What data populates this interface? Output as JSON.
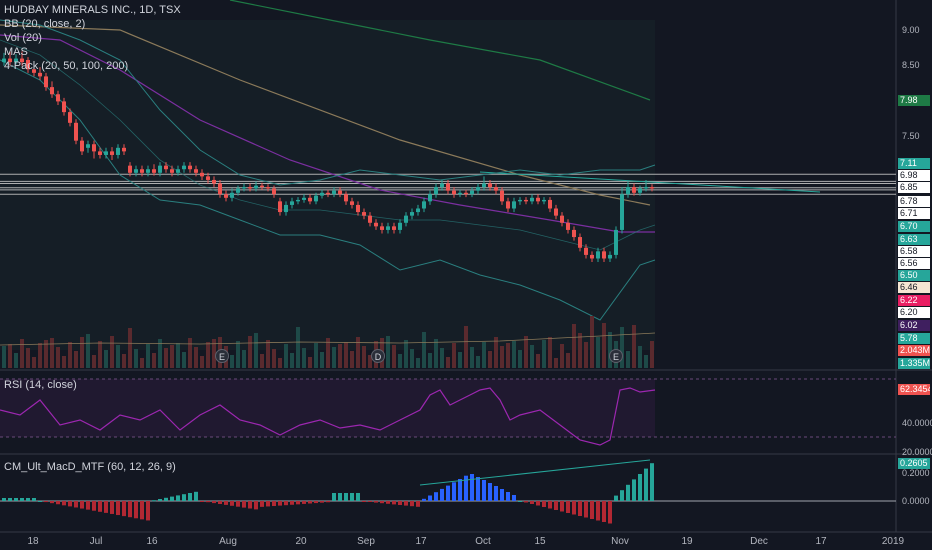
{
  "main": {
    "title": "HUDBAY MINERALS INC., 1D, TSX",
    "indicators": [
      "BB (20, close, 2)",
      "Vol (20)",
      "MAS",
      "4-Pack (20, 50, 100, 200)"
    ],
    "price_axis": [
      "9.00",
      "8.50",
      "7.50"
    ],
    "price_tags": [
      {
        "label": "7.98",
        "bg": "#1e7a45"
      },
      {
        "label": "7.11",
        "bg": "#26a69a"
      },
      {
        "label": "6.98",
        "bg": "#ffffff"
      },
      {
        "label": "6.85",
        "bg": "#ffffff"
      },
      {
        "label": "6.78",
        "bg": "#ffffff"
      },
      {
        "label": "6.71",
        "bg": "#ffffff"
      },
      {
        "label": "6.70",
        "bg": "#26a69a"
      },
      {
        "label": "6.63",
        "bg": "#26a69a"
      },
      {
        "label": "6.58",
        "bg": "#ffffff"
      },
      {
        "label": "6.56",
        "bg": "#ffffff"
      },
      {
        "label": "6.50",
        "bg": "#26a69a"
      },
      {
        "label": "6.46",
        "bg": "#f5e6d3"
      },
      {
        "label": "6.22",
        "bg": "#e91e63"
      },
      {
        "label": "6.20",
        "bg": "#ffffff"
      },
      {
        "label": "6.02",
        "bg": "#3f1f5f"
      },
      {
        "label": "5.78",
        "bg": "#26a69a"
      },
      {
        "label": "2.043M",
        "bg": "#ef5350"
      },
      {
        "label": "1.335M",
        "bg": "#26a69a"
      }
    ],
    "events": [
      "E",
      "D",
      "E"
    ]
  },
  "rsi": {
    "title": "RSI (14, close)",
    "value_tag": "62.3454",
    "axis": [
      "40.0000",
      "20.0000"
    ]
  },
  "macd": {
    "title": "CM_Ult_MacD_MTF (60, 12, 26, 9)",
    "value_tag": "0.2605",
    "axis": [
      "0.2000",
      "0.0000"
    ]
  },
  "x_axis": [
    "18",
    "Jul",
    "16",
    "Aug",
    "20",
    "Sep",
    "17",
    "Oct",
    "15",
    "Nov",
    "19",
    "Dec",
    "17",
    "2019"
  ],
  "colors": {
    "bull": "#26a69a",
    "bear": "#ef5350",
    "rsi": "#9c27b0",
    "bb": "#2a7f7f",
    "ma200": "#8b7a5a"
  }
}
